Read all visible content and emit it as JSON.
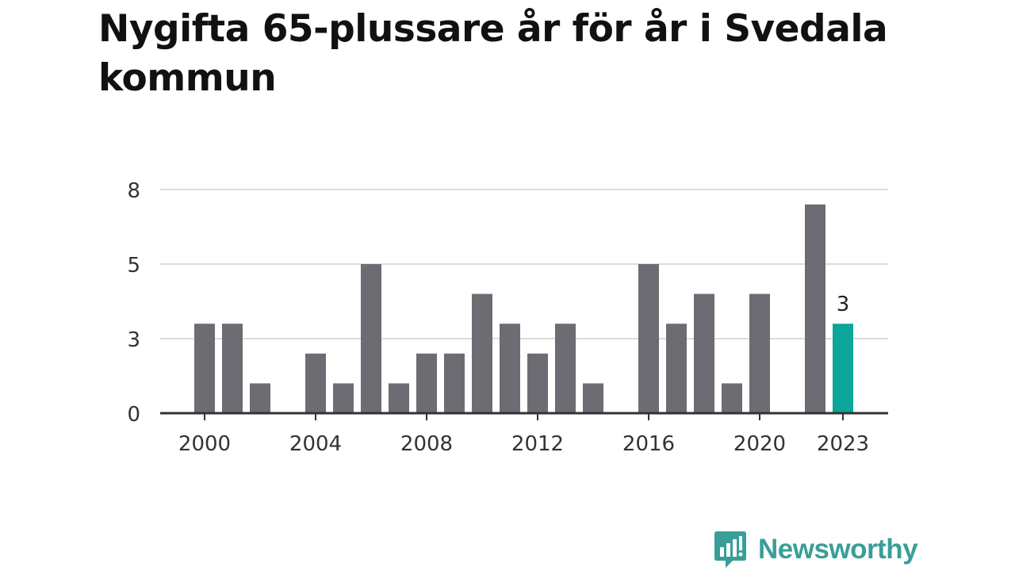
{
  "title": "Nygifta 65-plussare år för år i Svedala kommun",
  "brand": {
    "name": "Newsworthy",
    "icon": "newsworthy-logo-icon",
    "color": "#3a9e98"
  },
  "colors": {
    "bar": "#6d6c73",
    "highlight": "#0ea59a",
    "grid": "#dcdcdc",
    "axis": "#333333",
    "text": "#333333"
  },
  "chart_data": {
    "type": "bar",
    "title": "Nygifta 65-plussare år för år i Svedala kommun",
    "xlabel": "",
    "ylabel": "",
    "ylim": [
      0,
      7.5
    ],
    "grid": true,
    "yticks": [
      {
        "value": 0,
        "label": "0"
      },
      {
        "value": 2.5,
        "label": "3"
      },
      {
        "value": 5,
        "label": "5"
      },
      {
        "value": 7.5,
        "label": "8"
      }
    ],
    "xticks": [
      "2000",
      "2004",
      "2008",
      "2012",
      "2016",
      "2020",
      "2023"
    ],
    "categories": [
      "2000",
      "2001",
      "2002",
      "2003",
      "2004",
      "2005",
      "2006",
      "2007",
      "2008",
      "2009",
      "2010",
      "2011",
      "2012",
      "2013",
      "2014",
      "2015",
      "2016",
      "2017",
      "2018",
      "2019",
      "2020",
      "2021",
      "2022",
      "2023"
    ],
    "values": [
      3,
      3,
      1,
      0,
      2,
      1,
      5,
      1,
      2,
      2,
      4,
      3,
      2,
      3,
      1,
      0,
      5,
      3,
      4,
      1,
      4,
      0,
      7,
      3
    ],
    "highlight": {
      "category": "2023",
      "label": "3"
    }
  }
}
